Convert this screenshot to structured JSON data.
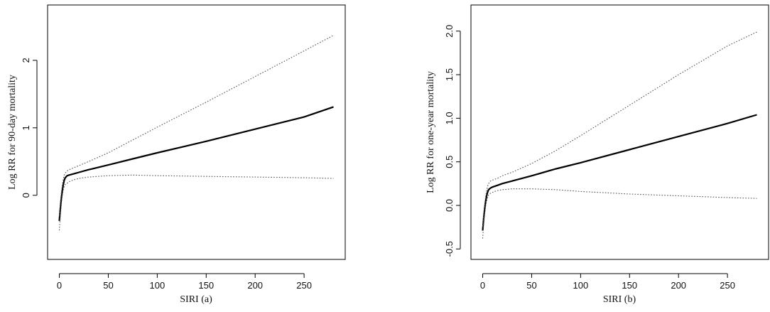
{
  "chart_data": [
    {
      "type": "line",
      "xlabel": "SIRI (a)",
      "ylabel": "Log RR for 90-day mortality",
      "xlim": [
        -12,
        292
      ],
      "ylim": [
        -0.95,
        2.82
      ],
      "xticks": [
        0,
        50,
        100,
        150,
        200,
        250
      ],
      "yticks": [
        0,
        1,
        2
      ],
      "grid": false,
      "series": [
        {
          "role": "estimate",
          "style": "solid",
          "x": [
            0,
            1,
            2,
            3,
            4,
            5,
            6,
            8,
            10,
            15,
            20,
            30,
            50,
            75,
            100,
            150,
            200,
            250,
            280
          ],
          "y": [
            -0.38,
            -0.2,
            -0.05,
            0.07,
            0.16,
            0.22,
            0.26,
            0.29,
            0.3,
            0.32,
            0.34,
            0.38,
            0.45,
            0.54,
            0.63,
            0.8,
            0.98,
            1.16,
            1.31
          ]
        },
        {
          "role": "upper 95% CI",
          "style": "dotted",
          "x": [
            0,
            1,
            2,
            3,
            4,
            5,
            6,
            8,
            10,
            15,
            20,
            30,
            50,
            75,
            100,
            150,
            200,
            250,
            280
          ],
          "y": [
            -0.3,
            -0.12,
            0.03,
            0.15,
            0.24,
            0.3,
            0.33,
            0.36,
            0.38,
            0.41,
            0.44,
            0.5,
            0.63,
            0.82,
            1.01,
            1.38,
            1.76,
            2.14,
            2.37
          ]
        },
        {
          "role": "lower 95% CI",
          "style": "dotted",
          "x": [
            0,
            1,
            2,
            3,
            4,
            5,
            6,
            8,
            10,
            15,
            20,
            30,
            50,
            75,
            100,
            150,
            200,
            250,
            280
          ],
          "y": [
            -0.52,
            -0.32,
            -0.14,
            -0.01,
            0.08,
            0.13,
            0.16,
            0.18,
            0.2,
            0.23,
            0.25,
            0.27,
            0.29,
            0.3,
            0.29,
            0.28,
            0.27,
            0.26,
            0.25
          ]
        }
      ]
    },
    {
      "type": "line",
      "xlabel": "SIRI (b)",
      "ylabel": "Log RR for one-year mortality",
      "xlim": [
        -12,
        292
      ],
      "ylim": [
        -0.62,
        2.3
      ],
      "xticks": [
        0,
        50,
        100,
        150,
        200,
        250
      ],
      "yticks": [
        -0.5,
        0.0,
        0.5,
        1.0,
        1.5,
        2.0
      ],
      "ytick_labels": [
        "-0.5",
        "0.0",
        "0.5",
        "1.0",
        "1.5",
        "2.0"
      ],
      "grid": false,
      "series": [
        {
          "role": "estimate",
          "style": "solid",
          "x": [
            0,
            1,
            2,
            3,
            4,
            5,
            6,
            8,
            10,
            15,
            20,
            30,
            50,
            75,
            100,
            150,
            200,
            250,
            280
          ],
          "y": [
            -0.29,
            -0.15,
            -0.04,
            0.05,
            0.11,
            0.15,
            0.18,
            0.2,
            0.21,
            0.23,
            0.25,
            0.28,
            0.34,
            0.42,
            0.49,
            0.64,
            0.79,
            0.94,
            1.04
          ]
        },
        {
          "role": "upper 95% CI",
          "style": "dotted",
          "x": [
            0,
            1,
            2,
            3,
            4,
            5,
            6,
            8,
            10,
            15,
            20,
            30,
            50,
            75,
            100,
            150,
            200,
            250,
            280
          ],
          "y": [
            -0.24,
            -0.1,
            0.01,
            0.1,
            0.17,
            0.22,
            0.25,
            0.28,
            0.29,
            0.31,
            0.34,
            0.38,
            0.48,
            0.63,
            0.8,
            1.15,
            1.5,
            1.83,
            1.99
          ]
        },
        {
          "role": "lower 95% CI",
          "style": "dotted",
          "x": [
            0,
            1,
            2,
            3,
            4,
            5,
            6,
            8,
            10,
            15,
            20,
            30,
            50,
            75,
            100,
            150,
            200,
            250,
            280
          ],
          "y": [
            -0.38,
            -0.22,
            -0.1,
            -0.01,
            0.05,
            0.09,
            0.12,
            0.14,
            0.15,
            0.17,
            0.18,
            0.19,
            0.19,
            0.18,
            0.16,
            0.13,
            0.11,
            0.09,
            0.08
          ]
        }
      ]
    }
  ]
}
